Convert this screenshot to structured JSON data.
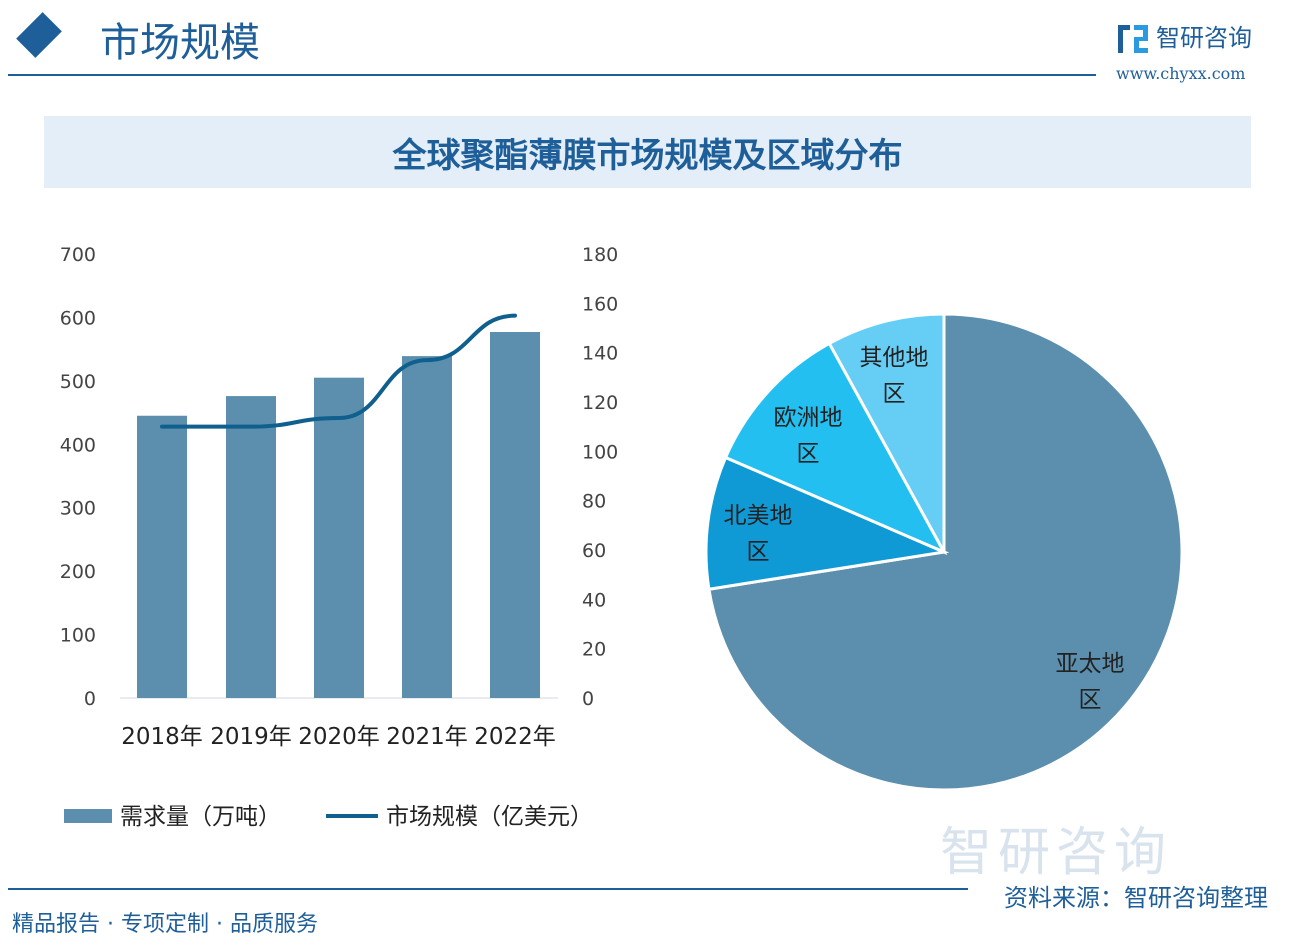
{
  "header": {
    "section_title": "市场规模",
    "brand": "智研咨询",
    "url": "www.chyxx.com"
  },
  "footer": {
    "left": "精品报告 · 专项定制 · 品质服务",
    "source": "资料来源：智研咨询整理",
    "watermark": "智研咨询"
  },
  "colors": {
    "bar": "#5b8fad",
    "line": "#0f5f8f",
    "accent": "#1f5f99",
    "pie": [
      "#5b8fad",
      "#0f9ad6",
      "#22bff0",
      "#66cef5"
    ]
  },
  "chart_data": [
    {
      "type": "bar+line",
      "title": "全球聚酯薄膜市场规模及区域分布",
      "categories": [
        "2018年",
        "2019年",
        "2020年",
        "2021年",
        "2022年"
      ],
      "series": [
        {
          "name": "需求量（万吨）",
          "type": "bar",
          "axis": "left",
          "values": [
            445,
            476,
            505,
            539,
            577
          ]
        },
        {
          "name": "市场规模（亿美元）",
          "type": "line",
          "axis": "right",
          "values": [
            110,
            110,
            113.5,
            137,
            155
          ]
        }
      ],
      "y_left": {
        "range": [
          0,
          700
        ],
        "ticks": [
          0,
          100,
          200,
          300,
          400,
          500,
          600,
          700
        ]
      },
      "y_right": {
        "range": [
          0,
          180
        ],
        "ticks": [
          0,
          20,
          40,
          60,
          80,
          100,
          120,
          140,
          160,
          180
        ]
      },
      "grid": false,
      "legend": "bottom"
    },
    {
      "type": "pie",
      "slices": [
        {
          "label": "亚太地区",
          "value": 72.5
        },
        {
          "label": "北美地区",
          "value": 9
        },
        {
          "label": "欧洲地区",
          "value": 10.5
        },
        {
          "label": "其他地区",
          "value": 8
        }
      ]
    }
  ]
}
